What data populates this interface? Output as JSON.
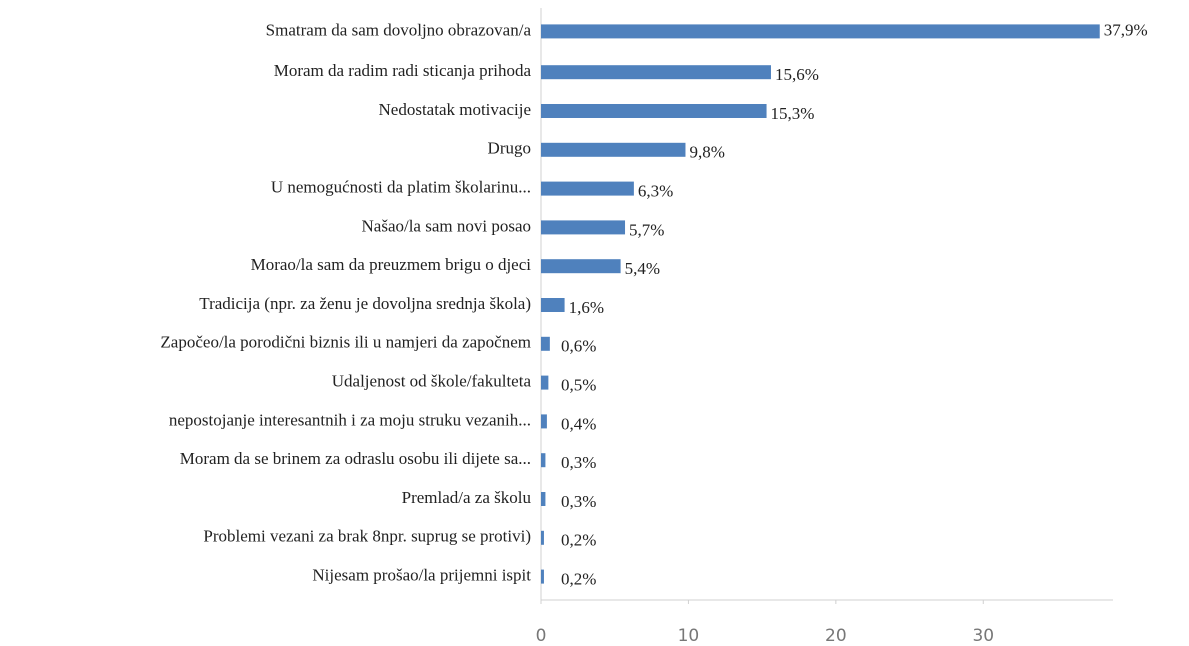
{
  "chart_data": {
    "type": "bar",
    "orientation": "horizontal",
    "color": "#4f81bd",
    "categories": [
      "Smatram da sam dovoljno obrazovan/a",
      "Moram da radim radi sticanja prihoda",
      "Nedostatak motivacije",
      "Drugo",
      "U nemogućnosti da platim školarinu...",
      "Našao/la sam novi posao",
      "Morao/la sam da preuzmem brigu o djeci",
      "Tradicija  (npr. za ženu je dovoljna srednja škola)",
      "Započeo/la porodični biznis ili u namjeri da započnem",
      "Udaljenost od škole/fakulteta",
      "nepostojanje interesantnih i za moju struku vezanih...",
      "Moram da se brinem za odraslu osobu ili dijete sa...",
      "Premlad/a za školu",
      "Problemi vezani za brak 8npr. suprug se protivi)",
      "Nijesam prošao/la prijemni ispit"
    ],
    "values": [
      37.9,
      15.6,
      15.3,
      9.8,
      6.3,
      5.7,
      5.4,
      1.6,
      0.6,
      0.5,
      0.4,
      0.3,
      0.3,
      0.2,
      0.2
    ],
    "value_labels": [
      "37,9%",
      "15,6%",
      "15,3%",
      "9,8%",
      "6,3%",
      "5,7%",
      "5,4%",
      "1,6%",
      "0,6%",
      "0,5%",
      "0,4%",
      "0,3%",
      "0,3%",
      "0,2%",
      "0,2%"
    ],
    "xlim": [
      0,
      38.8
    ],
    "xticks": [
      0,
      10,
      20,
      30
    ],
    "grid": false
  }
}
